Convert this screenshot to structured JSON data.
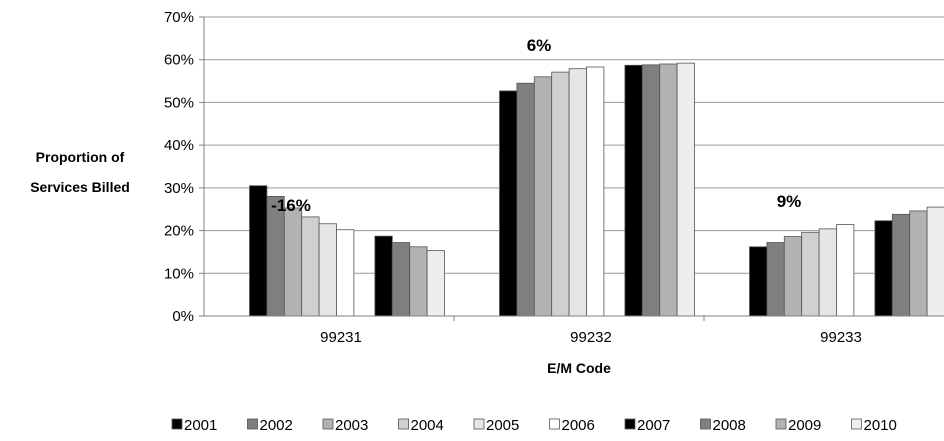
{
  "chart_data": {
    "type": "bar",
    "xlabel": "E/M Code",
    "ylabel": [
      "Proportion of",
      "Services Billed"
    ],
    "categories": [
      "99231",
      "99232",
      "99233"
    ],
    "ylim": [
      0,
      70
    ],
    "yticks": [
      "0%",
      "10%",
      "20%",
      "30%",
      "40%",
      "50%",
      "60%",
      "70%"
    ],
    "grid": true,
    "legend_position": "bottom",
    "series": [
      {
        "name": "2001",
        "color": "#000000",
        "values": [
          30.5,
          52.7,
          16.2
        ]
      },
      {
        "name": "2002",
        "color": "#7f7f7f",
        "values": [
          28.0,
          54.5,
          17.2
        ]
      },
      {
        "name": "2003",
        "color": "#b2b2b2",
        "values": [
          25.3,
          56.0,
          18.6
        ]
      },
      {
        "name": "2004",
        "color": "#d0d0d0",
        "values": [
          23.2,
          57.1,
          19.6
        ]
      },
      {
        "name": "2005",
        "color": "#e6e6e6",
        "values": [
          21.6,
          57.9,
          20.4
        ]
      },
      {
        "name": "2006",
        "color": "#ffffff",
        "values": [
          20.2,
          58.3,
          21.4
        ]
      },
      {
        "name": "2007",
        "color": "#000000",
        "values": [
          18.7,
          58.7,
          22.3
        ]
      },
      {
        "name": "2008",
        "color": "#7f7f7f",
        "values": [
          17.2,
          58.8,
          23.8
        ]
      },
      {
        "name": "2009",
        "color": "#b2b2b2",
        "values": [
          16.2,
          59.0,
          24.6
        ]
      },
      {
        "name": "2010",
        "color": "#eeeeee",
        "values": [
          15.3,
          59.2,
          25.5
        ]
      }
    ],
    "annotations": [
      "-16%",
      "6%",
      "9%"
    ]
  }
}
